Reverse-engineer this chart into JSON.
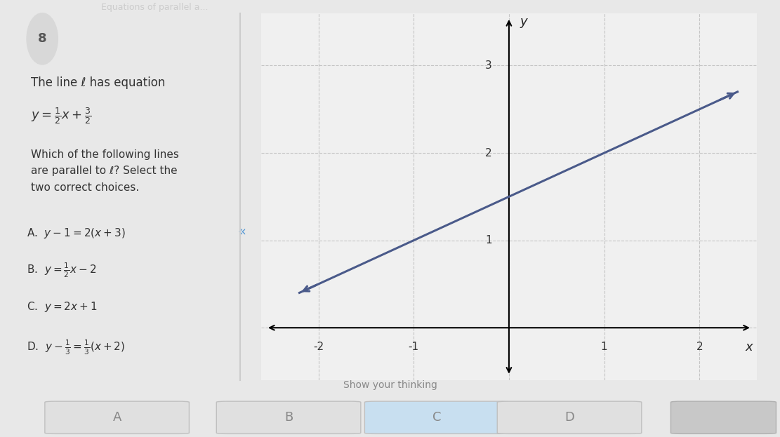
{
  "title": "Equations of parallel a...",
  "bg_color": "#e8e8e8",
  "panel_bg": "#ffffff",
  "graph_bg": "#f0f0f0",
  "text_color": "#333333",
  "question_number": "8",
  "intro_text": "The line ℓ has equation",
  "question_text": "Which of the following lines\nare parallel to ℓ? Select the\ntwo correct choices.",
  "answer_labels": [
    "A",
    "B",
    "C",
    "D"
  ],
  "line_slope": 0.5,
  "line_intercept": 1.5,
  "line_color": "#4a5a8a",
  "line_width": 2.2,
  "x_range": [
    -2.6,
    2.6
  ],
  "y_range": [
    -0.6,
    3.6
  ],
  "axis_label_x": "x",
  "axis_label_y": "y",
  "dashed_grid_color": "#bbbbbb",
  "show_your_thinking": "Show your thinking",
  "button_colors": [
    "#e0e0e0",
    "#e0e0e0",
    "#c8dff0",
    "#e0e0e0"
  ],
  "button_text_color": "#888888",
  "top_bar_color": "#607d8b",
  "top_bar_text_color": "#cccccc"
}
